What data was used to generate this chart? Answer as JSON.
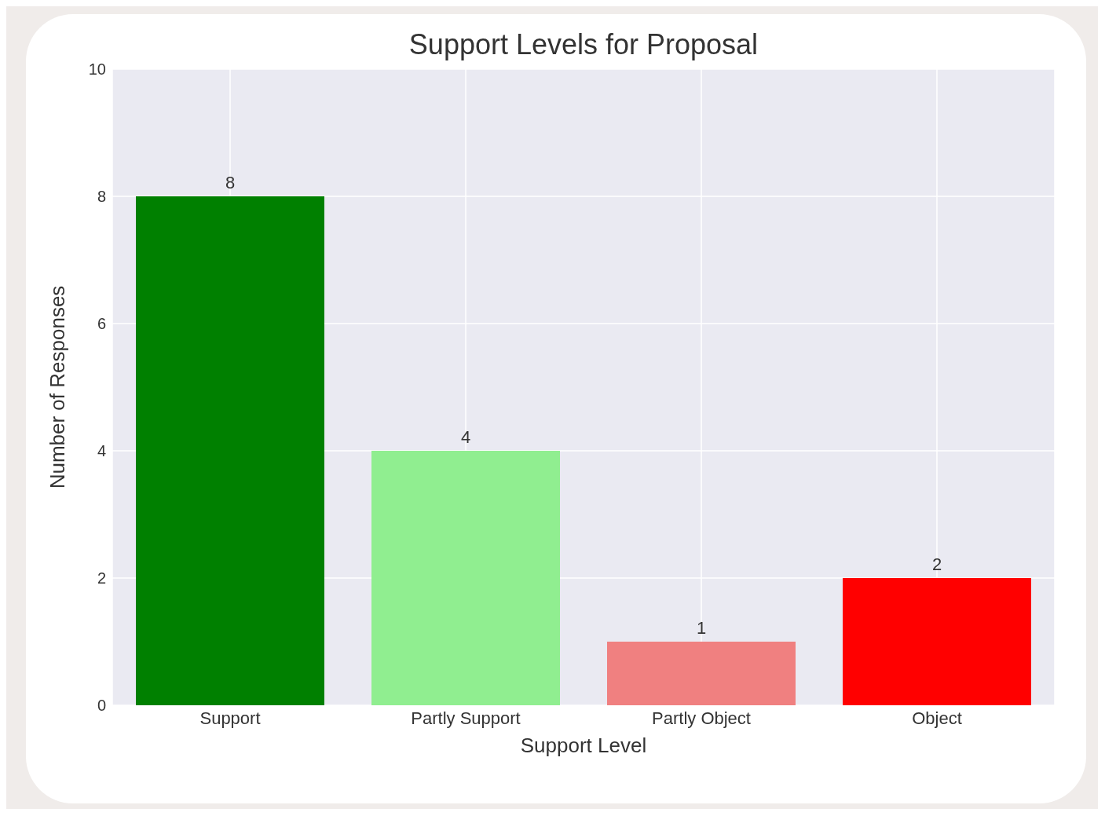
{
  "chart_data": {
    "type": "bar",
    "title": "Support Levels for Proposal",
    "xlabel": "Support Level",
    "ylabel": "Number of Responses",
    "categories": [
      "Support",
      "Partly Support",
      "Partly Object",
      "Object"
    ],
    "values": [
      8,
      4,
      1,
      2
    ],
    "colors": [
      "#008000",
      "#90ee90",
      "#f08080",
      "#ff0000"
    ],
    "ylim": [
      0,
      10
    ],
    "yticks": [
      0,
      2,
      4,
      6,
      8,
      10
    ],
    "grid": true,
    "data_labels": true
  }
}
